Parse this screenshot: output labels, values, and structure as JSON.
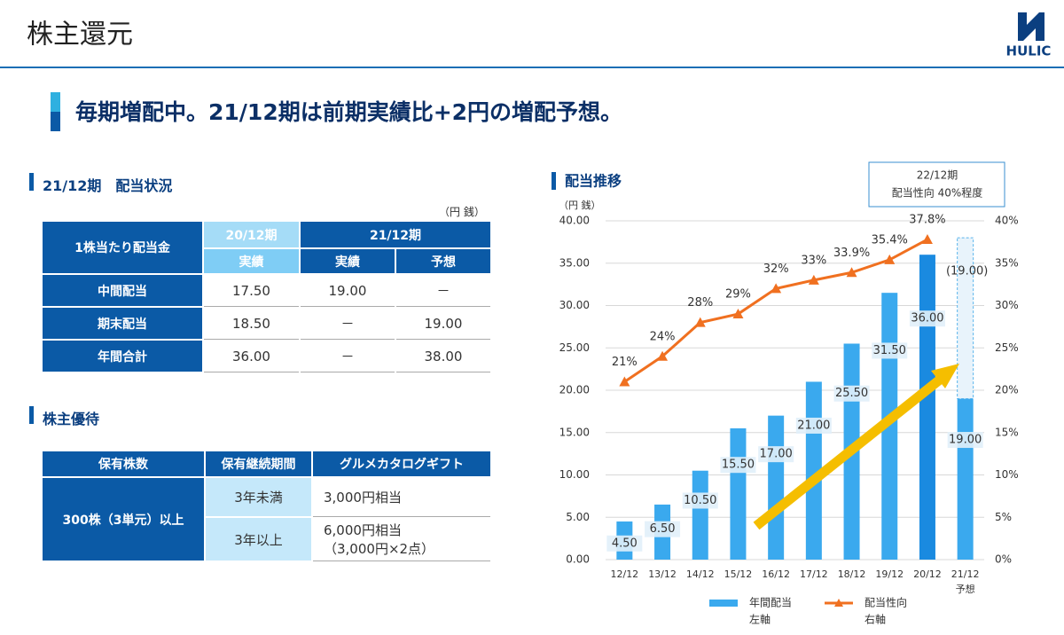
{
  "header": {
    "title": "株主還元",
    "logo": "HULIC"
  },
  "headline": "毎期増配中。21/12期は前期実績比+2円の増配予想。",
  "dividend_table": {
    "title": "21/12期　配当状況",
    "unit": "（円 銭）",
    "corner": "1株当たり配当金",
    "periods": [
      "20/12期",
      "21/12期"
    ],
    "columns": [
      "実績",
      "実績",
      "予想"
    ],
    "rows": [
      {
        "label": "中間配当",
        "cells": [
          "17.50",
          "19.00",
          "－"
        ]
      },
      {
        "label": "期末配当",
        "cells": [
          "18.50",
          "－",
          "19.00"
        ]
      },
      {
        "label": "年間合計",
        "cells": [
          "36.00",
          "－",
          "38.00"
        ]
      }
    ]
  },
  "benefit_table": {
    "title": "株主優待",
    "headers": [
      "保有株数",
      "保有継続期間",
      "グルメカタログギフト"
    ],
    "holding": "300株（3単元）以上",
    "rows": [
      {
        "period": "3年未満",
        "gift": [
          "3,000円相当"
        ]
      },
      {
        "period": "3年以上",
        "gift": [
          "6,000円相当",
          "（3,000円×2点）"
        ]
      }
    ]
  },
  "chart_data": {
    "type": "bar",
    "title": "配当推移",
    "ylabel": "（円 銭）",
    "categories": [
      "12/12",
      "13/12",
      "14/12",
      "15/12",
      "16/12",
      "17/12",
      "18/12",
      "19/12",
      "20/12",
      "21/12"
    ],
    "forecast_label": "予想",
    "series": [
      {
        "name": "年間配当",
        "axis_note": "左軸",
        "color": "#3aa9ee",
        "colors": [
          "#3aa9ee",
          "#3aa9ee",
          "#3aa9ee",
          "#3aa9ee",
          "#3aa9ee",
          "#3aa9ee",
          "#3aa9ee",
          "#3aa9ee",
          "#1a8ae0",
          "#3aa9ee"
        ],
        "values": [
          4.5,
          6.5,
          10.5,
          15.5,
          17,
          21,
          25.5,
          31.5,
          36,
          19
        ],
        "value_labels": [
          "4.50",
          "6.50",
          "10.50",
          "15.50",
          "17.00",
          "21.00",
          "25.50",
          "31.50",
          "36.00",
          "19.00"
        ]
      },
      {
        "color": "#e8f3fb",
        "values": [
          null,
          null,
          null,
          null,
          null,
          null,
          null,
          null,
          null,
          19
        ],
        "value_labels": [
          null,
          null,
          null,
          null,
          null,
          null,
          null,
          null,
          null,
          "(19.00)"
        ]
      },
      {
        "name": "配当性向",
        "axis_note": "右軸",
        "type": "line",
        "axis": "y2",
        "color": "#f07020",
        "values": [
          21,
          24,
          28,
          29,
          32,
          33,
          33.9,
          35.4,
          37.8,
          null
        ],
        "value_labels": [
          "21%",
          "24%",
          "28%",
          "29%",
          "32%",
          "33%",
          "33.9%",
          "35.4%",
          "37.8%",
          null
        ]
      }
    ],
    "ylim": [
      0,
      40
    ],
    "yticks": [
      {
        "value": 0,
        "label": "0.00"
      },
      {
        "value": 5,
        "label": "5.00"
      },
      {
        "value": 10,
        "label": "10.00"
      },
      {
        "value": 15,
        "label": "15.00"
      },
      {
        "value": 20,
        "label": "20.00"
      },
      {
        "value": 25,
        "label": "25.00"
      },
      {
        "value": 30,
        "label": "30.00"
      },
      {
        "value": 35,
        "label": "35.00"
      },
      {
        "value": 40,
        "label": "40.00"
      }
    ],
    "y2lim": [
      0,
      40
    ],
    "y2ticks": [
      {
        "value": 0,
        "label": "0%"
      },
      {
        "value": 5,
        "label": "5%"
      },
      {
        "value": 10,
        "label": "10%"
      },
      {
        "value": 15,
        "label": "15%"
      },
      {
        "value": 20,
        "label": "20%"
      },
      {
        "value": 25,
        "label": "25%"
      },
      {
        "value": 30,
        "label": "30%"
      },
      {
        "value": 35,
        "label": "35%"
      },
      {
        "value": 40,
        "label": "40%"
      }
    ],
    "grid": true,
    "annotation": [
      "22/12期",
      "配当性向 40%程度"
    ]
  }
}
